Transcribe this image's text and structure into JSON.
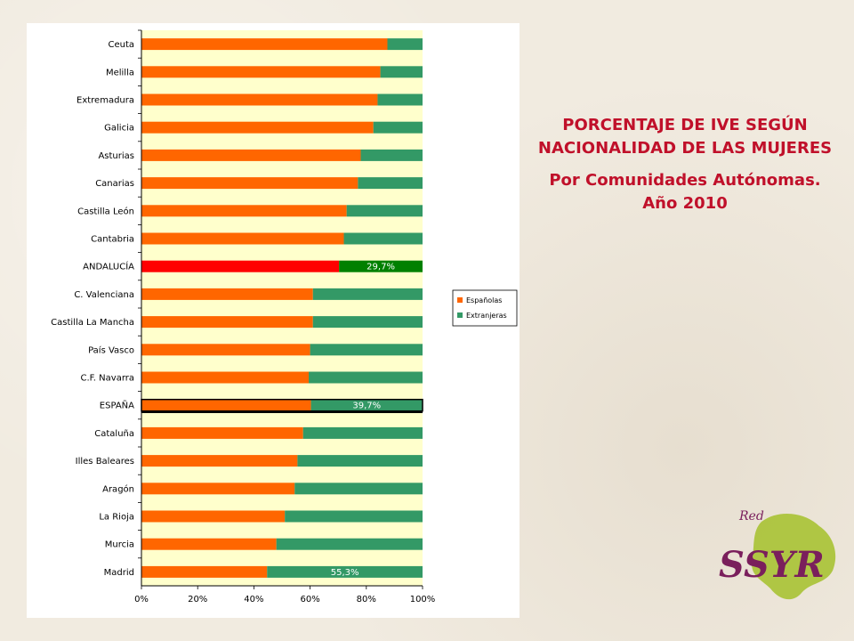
{
  "title": {
    "line1": "PORCENTAJE DE IVE SEGÚN NACIONALIDAD DE LAS MUJERES",
    "line2": "Por Comunidades Autónomas. Año 2010"
  },
  "logo": {
    "small_text": "Red",
    "main_text": "SSYR"
  },
  "colors": {
    "espanolas": "#ff6600",
    "extranjeras": "#339966",
    "andalucia_espanolas": "#ff0000",
    "andalucia_extranjeras": "#008000",
    "plot_bg": "#ffffcc",
    "title": "#c0102a"
  },
  "chart_data": {
    "type": "bar",
    "orientation": "horizontal",
    "stacked": "percent",
    "categories": [
      "Ceuta",
      "Melilla",
      "Extremadura",
      "Galicia",
      "Asturias",
      "Canarias",
      "Castilla León",
      "Cantabria",
      "ANDALUCÍA",
      "C. Valenciana",
      "Castilla La Mancha",
      "País Vasco",
      "C.F. Navarra",
      "ESPAÑA",
      "Cataluña",
      "Illes Baleares",
      "Aragón",
      "La Rioja",
      "Murcia",
      "Madrid"
    ],
    "series": [
      {
        "name": "Españolas",
        "values": [
          87.5,
          85,
          84,
          82.5,
          78,
          77,
          73,
          72,
          70.3,
          61,
          61,
          60,
          59.5,
          60.3,
          57.5,
          55.5,
          54.5,
          51,
          48,
          44.7
        ]
      },
      {
        "name": "Extranjeras",
        "values": [
          12.5,
          15,
          16,
          17.5,
          22,
          23,
          27,
          28,
          29.7,
          39,
          39,
          40,
          40.5,
          39.7,
          42.5,
          44.5,
          45.5,
          49,
          52,
          55.3
        ]
      }
    ],
    "data_labels": [
      {
        "category": "ANDALUCÍA",
        "series": "Extranjeras",
        "text": "29,7%"
      },
      {
        "category": "ESPAÑA",
        "series": "Extranjeras",
        "text": "39,7%"
      },
      {
        "category": "Madrid",
        "series": "Extranjeras",
        "text": "55,3%"
      }
    ],
    "x_ticks": [
      "0%",
      "20%",
      "40%",
      "60%",
      "80%",
      "100%"
    ],
    "xlim": [
      0,
      100
    ],
    "highlighted": [
      "ANDALUCÍA",
      "ESPAÑA"
    ],
    "legend_placement": "right",
    "grid": false
  }
}
